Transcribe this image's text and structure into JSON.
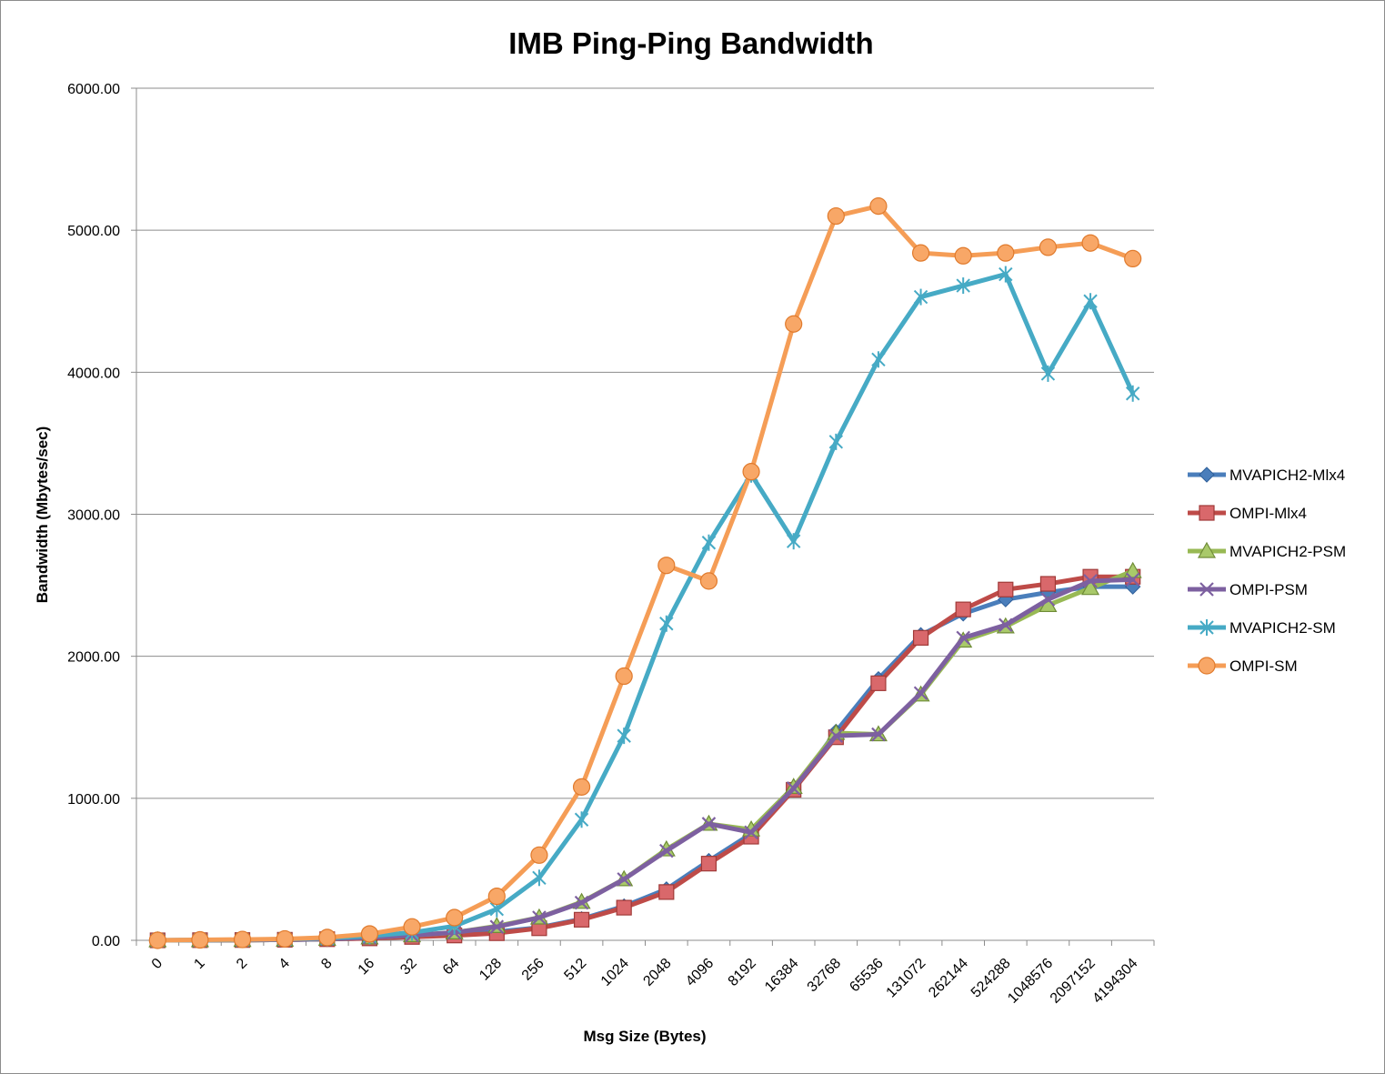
{
  "chart_data": {
    "type": "line",
    "title": "IMB Ping-Ping Bandwidth",
    "xlabel": "Msg Size (Bytes)",
    "ylabel": "Bandwidth (Mbytes/sec)",
    "ylim": [
      0,
      6000
    ],
    "yticks": [
      "0.00",
      "1000.00",
      "2000.00",
      "3000.00",
      "4000.00",
      "5000.00",
      "6000.00"
    ],
    "grid": "horizontal",
    "legend_position": "right",
    "categories": [
      "0",
      "1",
      "2",
      "4",
      "8",
      "16",
      "32",
      "64",
      "128",
      "256",
      "512",
      "1024",
      "2048",
      "4096",
      "8192",
      "16384",
      "32768",
      "65536",
      "131072",
      "262144",
      "524288",
      "1048576",
      "2097152",
      "4194304"
    ],
    "series": [
      {
        "name": "MVAPICH2-Mlx4",
        "color": "#4a7ebb",
        "marker": "diamond",
        "values": [
          0,
          1,
          2,
          4,
          8,
          15,
          25,
          38,
          60,
          90,
          150,
          240,
          360,
          560,
          750,
          1060,
          1470,
          1840,
          2150,
          2300,
          2400,
          2450,
          2490,
          2490
        ]
      },
      {
        "name": "OMPI-Mlx4",
        "color": "#be4b48",
        "marker": "square",
        "values": [
          0,
          1,
          2,
          4,
          8,
          14,
          24,
          34,
          50,
          85,
          145,
          230,
          340,
          540,
          730,
          1060,
          1430,
          1810,
          2130,
          2330,
          2470,
          2510,
          2560,
          2560
        ]
      },
      {
        "name": "MVAPICH2-PSM",
        "color": "#98b954",
        "marker": "triangle",
        "values": [
          0,
          1,
          2,
          4,
          10,
          20,
          35,
          55,
          100,
          160,
          270,
          430,
          640,
          820,
          780,
          1080,
          1460,
          1450,
          1730,
          2110,
          2210,
          2360,
          2480,
          2600
        ]
      },
      {
        "name": "OMPI-PSM",
        "color": "#7d60a0",
        "marker": "x",
        "values": [
          0,
          1,
          2,
          4,
          10,
          20,
          35,
          55,
          95,
          160,
          265,
          430,
          630,
          820,
          760,
          1070,
          1440,
          1450,
          1740,
          2130,
          2220,
          2400,
          2530,
          2540
        ]
      },
      {
        "name": "MVAPICH2-SM",
        "color": "#46aac5",
        "marker": "star",
        "values": [
          0,
          2,
          4,
          8,
          15,
          30,
          55,
          100,
          220,
          440,
          850,
          1440,
          2230,
          2800,
          3280,
          2810,
          3510,
          4090,
          4530,
          4610,
          4690,
          3990,
          4500,
          3850
        ]
      },
      {
        "name": "OMPI-SM",
        "color": "#f59d56",
        "marker": "circle",
        "values": [
          0,
          3,
          6,
          10,
          20,
          45,
          95,
          160,
          310,
          600,
          1080,
          1860,
          2640,
          2530,
          3300,
          4340,
          5100,
          5170,
          4840,
          4820,
          4840,
          4880,
          4910,
          4800
        ]
      }
    ]
  }
}
